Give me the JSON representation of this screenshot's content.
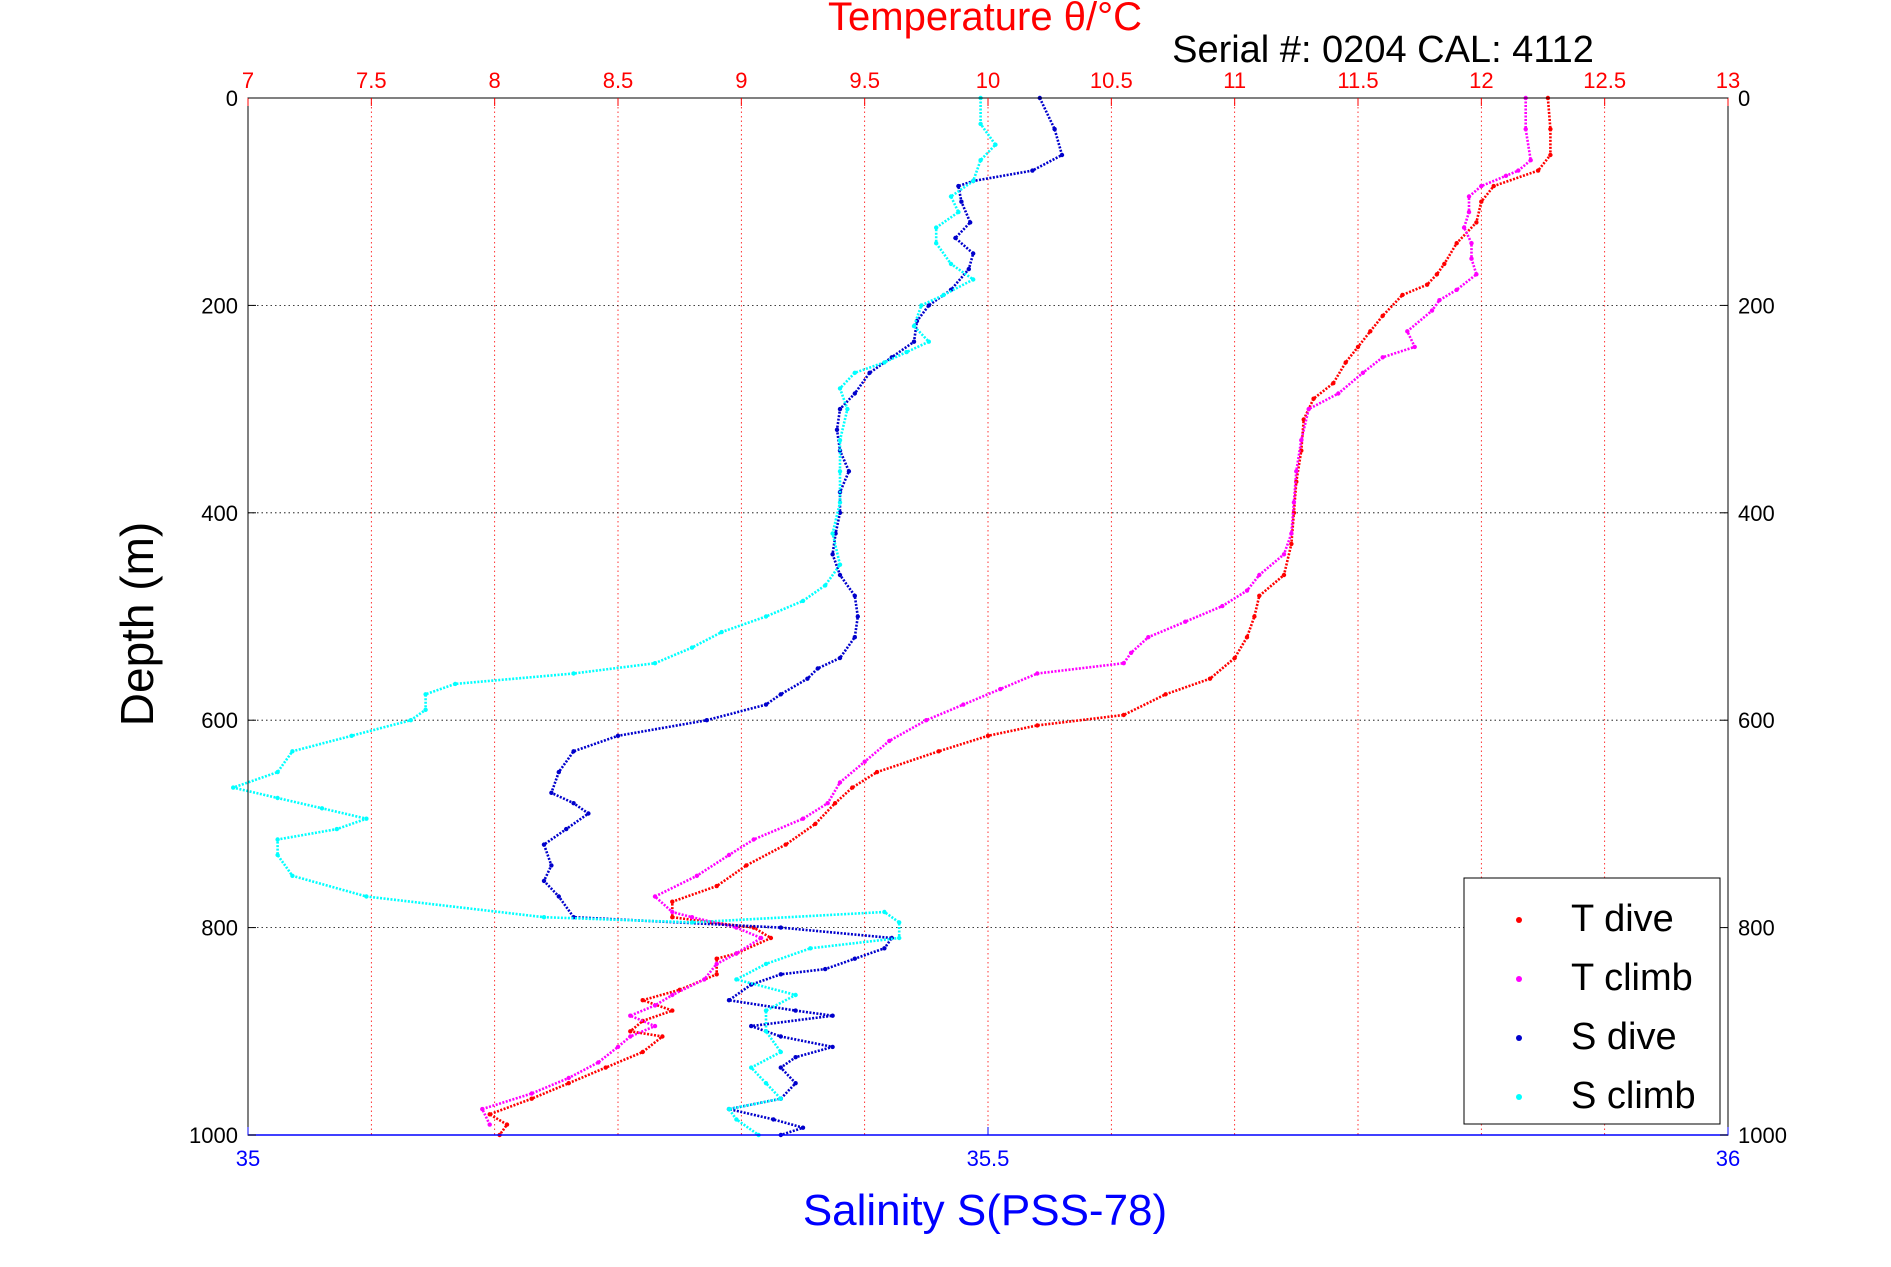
{
  "chart_data": {
    "type": "scatter",
    "title": "Temperature θ/°C",
    "subtitle": "Serial #: 0204  CAL: 4112",
    "ylabel": "Depth (m)",
    "xlabel_bottom": "Salinity S(PSS-78)",
    "x_top": {
      "label": "Temperature θ/°C",
      "range": [
        7,
        13
      ],
      "ticks": [
        "7",
        "7.5",
        "8",
        "8.5",
        "9",
        "9.5",
        "10",
        "10.5",
        "11",
        "11.5",
        "12",
        "12.5",
        "13"
      ],
      "color": "#ff0000"
    },
    "x_bottom": {
      "label": "Salinity S(PSS-78)",
      "range": [
        35,
        36
      ],
      "ticks": [
        "35",
        "35.5",
        "36"
      ],
      "color": "#0000ff"
    },
    "y": {
      "range": [
        0,
        1000
      ],
      "reversed": true,
      "ticks": [
        "0",
        "200",
        "400",
        "600",
        "800",
        "1000"
      ]
    },
    "grid": true,
    "legend": {
      "placement": "bottom-right",
      "entries": [
        "T dive",
        "T climb",
        "S dive",
        "S climb"
      ]
    },
    "series": [
      {
        "name": "T dive",
        "axis": "top",
        "color": "#ff0000",
        "points": [
          [
            12.27,
            0
          ],
          [
            12.28,
            30
          ],
          [
            12.28,
            55
          ],
          [
            12.23,
            70
          ],
          [
            12.05,
            85
          ],
          [
            12.0,
            100
          ],
          [
            11.98,
            120
          ],
          [
            11.9,
            140
          ],
          [
            11.85,
            160
          ],
          [
            11.82,
            170
          ],
          [
            11.78,
            180
          ],
          [
            11.68,
            190
          ],
          [
            11.6,
            210
          ],
          [
            11.55,
            225
          ],
          [
            11.5,
            240
          ],
          [
            11.45,
            255
          ],
          [
            11.4,
            275
          ],
          [
            11.32,
            290
          ],
          [
            11.28,
            310
          ],
          [
            11.27,
            340
          ],
          [
            11.25,
            370
          ],
          [
            11.24,
            400
          ],
          [
            11.23,
            430
          ],
          [
            11.2,
            460
          ],
          [
            11.1,
            480
          ],
          [
            11.08,
            500
          ],
          [
            11.05,
            520
          ],
          [
            11.0,
            540
          ],
          [
            10.9,
            560
          ],
          [
            10.72,
            575
          ],
          [
            10.55,
            595
          ],
          [
            10.2,
            605
          ],
          [
            10.0,
            615
          ],
          [
            9.8,
            630
          ],
          [
            9.55,
            650
          ],
          [
            9.45,
            665
          ],
          [
            9.38,
            680
          ],
          [
            9.3,
            700
          ],
          [
            9.18,
            720
          ],
          [
            9.02,
            740
          ],
          [
            8.9,
            760
          ],
          [
            8.72,
            775
          ],
          [
            8.72,
            790
          ],
          [
            8.88,
            795
          ],
          [
            9.05,
            800
          ],
          [
            9.12,
            810
          ],
          [
            8.98,
            825
          ],
          [
            8.9,
            830
          ],
          [
            8.9,
            845
          ],
          [
            8.75,
            860
          ],
          [
            8.6,
            870
          ],
          [
            8.72,
            880
          ],
          [
            8.6,
            890
          ],
          [
            8.55,
            900
          ],
          [
            8.68,
            905
          ],
          [
            8.6,
            920
          ],
          [
            8.45,
            935
          ],
          [
            8.3,
            950
          ],
          [
            8.15,
            965
          ],
          [
            7.98,
            980
          ],
          [
            8.05,
            990
          ],
          [
            8.02,
            1000
          ]
        ]
      },
      {
        "name": "T climb",
        "axis": "top",
        "color": "#ff00ff",
        "points": [
          [
            12.18,
            0
          ],
          [
            12.18,
            30
          ],
          [
            12.2,
            60
          ],
          [
            12.15,
            70
          ],
          [
            12.1,
            75
          ],
          [
            12.0,
            85
          ],
          [
            11.95,
            95
          ],
          [
            11.95,
            110
          ],
          [
            11.93,
            125
          ],
          [
            11.96,
            140
          ],
          [
            11.96,
            155
          ],
          [
            11.98,
            170
          ],
          [
            11.9,
            185
          ],
          [
            11.83,
            195
          ],
          [
            11.8,
            205
          ],
          [
            11.7,
            225
          ],
          [
            11.73,
            240
          ],
          [
            11.6,
            250
          ],
          [
            11.52,
            265
          ],
          [
            11.42,
            285
          ],
          [
            11.3,
            300
          ],
          [
            11.27,
            330
          ],
          [
            11.25,
            360
          ],
          [
            11.24,
            390
          ],
          [
            11.23,
            420
          ],
          [
            11.2,
            440
          ],
          [
            11.1,
            460
          ],
          [
            11.05,
            475
          ],
          [
            10.95,
            490
          ],
          [
            10.8,
            505
          ],
          [
            10.65,
            520
          ],
          [
            10.58,
            535
          ],
          [
            10.55,
            545
          ],
          [
            10.2,
            555
          ],
          [
            10.05,
            570
          ],
          [
            9.9,
            585
          ],
          [
            9.75,
            600
          ],
          [
            9.6,
            620
          ],
          [
            9.5,
            640
          ],
          [
            9.4,
            660
          ],
          [
            9.35,
            680
          ],
          [
            9.25,
            695
          ],
          [
            9.05,
            715
          ],
          [
            8.95,
            730
          ],
          [
            8.82,
            750
          ],
          [
            8.65,
            770
          ],
          [
            8.72,
            785
          ],
          [
            8.8,
            790
          ],
          [
            8.98,
            800
          ],
          [
            9.08,
            810
          ],
          [
            8.98,
            825
          ],
          [
            8.9,
            835
          ],
          [
            8.85,
            850
          ],
          [
            8.72,
            865
          ],
          [
            8.65,
            875
          ],
          [
            8.55,
            885
          ],
          [
            8.65,
            895
          ],
          [
            8.55,
            905
          ],
          [
            8.5,
            915
          ],
          [
            8.42,
            930
          ],
          [
            8.3,
            945
          ],
          [
            8.15,
            960
          ],
          [
            7.95,
            975
          ],
          [
            7.98,
            990
          ]
        ]
      },
      {
        "name": "S dive",
        "axis": "bottom",
        "color": "#0000cc",
        "points": [
          [
            35.535,
            0
          ],
          [
            35.545,
            30
          ],
          [
            35.55,
            55
          ],
          [
            35.53,
            70
          ],
          [
            35.49,
            80
          ],
          [
            35.48,
            85
          ],
          [
            35.482,
            100
          ],
          [
            35.488,
            120
          ],
          [
            35.478,
            135
          ],
          [
            35.49,
            150
          ],
          [
            35.487,
            165
          ],
          [
            35.475,
            185
          ],
          [
            35.46,
            200
          ],
          [
            35.452,
            215
          ],
          [
            35.45,
            235
          ],
          [
            35.435,
            250
          ],
          [
            35.42,
            265
          ],
          [
            35.41,
            285
          ],
          [
            35.4,
            300
          ],
          [
            35.398,
            320
          ],
          [
            35.4,
            340
          ],
          [
            35.406,
            360
          ],
          [
            35.4,
            380
          ],
          [
            35.4,
            400
          ],
          [
            35.397,
            420
          ],
          [
            35.395,
            440
          ],
          [
            35.4,
            460
          ],
          [
            35.41,
            480
          ],
          [
            35.412,
            500
          ],
          [
            35.41,
            520
          ],
          [
            35.4,
            540
          ],
          [
            35.385,
            550
          ],
          [
            35.378,
            560
          ],
          [
            35.36,
            575
          ],
          [
            35.35,
            585
          ],
          [
            35.31,
            600
          ],
          [
            35.25,
            615
          ],
          [
            35.22,
            630
          ],
          [
            35.21,
            650
          ],
          [
            35.205,
            670
          ],
          [
            35.22,
            680
          ],
          [
            35.23,
            690
          ],
          [
            35.215,
            705
          ],
          [
            35.2,
            720
          ],
          [
            35.205,
            740
          ],
          [
            35.2,
            755
          ],
          [
            35.21,
            770
          ],
          [
            35.22,
            790
          ],
          [
            35.36,
            800
          ],
          [
            35.435,
            810
          ],
          [
            35.43,
            820
          ],
          [
            35.41,
            830
          ],
          [
            35.39,
            840
          ],
          [
            35.36,
            845
          ],
          [
            35.34,
            855
          ],
          [
            35.325,
            870
          ],
          [
            35.37,
            880
          ],
          [
            35.395,
            885
          ],
          [
            35.34,
            895
          ],
          [
            35.36,
            905
          ],
          [
            35.395,
            915
          ],
          [
            35.37,
            925
          ],
          [
            35.36,
            935
          ],
          [
            35.37,
            950
          ],
          [
            35.36,
            965
          ],
          [
            35.325,
            975
          ],
          [
            35.355,
            985
          ],
          [
            35.375,
            993
          ],
          [
            35.36,
            1000
          ]
        ]
      },
      {
        "name": "S climb",
        "axis": "bottom",
        "color": "#00ffff",
        "points": [
          [
            35.495,
            0
          ],
          [
            35.495,
            25
          ],
          [
            35.505,
            45
          ],
          [
            35.495,
            60
          ],
          [
            35.49,
            80
          ],
          [
            35.475,
            95
          ],
          [
            35.48,
            110
          ],
          [
            35.465,
            125
          ],
          [
            35.465,
            140
          ],
          [
            35.475,
            160
          ],
          [
            35.49,
            175
          ],
          [
            35.47,
            190
          ],
          [
            35.455,
            200
          ],
          [
            35.45,
            220
          ],
          [
            35.46,
            235
          ],
          [
            35.445,
            245
          ],
          [
            35.43,
            255
          ],
          [
            35.41,
            265
          ],
          [
            35.4,
            280
          ],
          [
            35.405,
            300
          ],
          [
            35.4,
            330
          ],
          [
            35.4,
            360
          ],
          [
            35.4,
            390
          ],
          [
            35.395,
            420
          ],
          [
            35.4,
            450
          ],
          [
            35.39,
            470
          ],
          [
            35.375,
            485
          ],
          [
            35.35,
            500
          ],
          [
            35.32,
            515
          ],
          [
            35.3,
            530
          ],
          [
            35.275,
            545
          ],
          [
            35.22,
            555
          ],
          [
            35.14,
            565
          ],
          [
            35.12,
            575
          ],
          [
            35.12,
            590
          ],
          [
            35.11,
            600
          ],
          [
            35.07,
            615
          ],
          [
            35.03,
            630
          ],
          [
            35.02,
            650
          ],
          [
            34.99,
            665
          ],
          [
            35.02,
            675
          ],
          [
            35.05,
            685
          ],
          [
            35.08,
            695
          ],
          [
            35.06,
            705
          ],
          [
            35.02,
            715
          ],
          [
            35.02,
            730
          ],
          [
            35.03,
            750
          ],
          [
            35.08,
            770
          ],
          [
            35.2,
            790
          ],
          [
            35.3,
            795
          ],
          [
            35.43,
            785
          ],
          [
            35.44,
            795
          ],
          [
            35.44,
            810
          ],
          [
            35.38,
            820
          ],
          [
            35.35,
            835
          ],
          [
            35.33,
            850
          ],
          [
            35.37,
            865
          ],
          [
            35.35,
            880
          ],
          [
            35.35,
            900
          ],
          [
            35.36,
            920
          ],
          [
            35.34,
            935
          ],
          [
            35.35,
            950
          ],
          [
            35.36,
            965
          ],
          [
            35.325,
            975
          ],
          [
            35.33,
            985
          ],
          [
            35.345,
            1000
          ]
        ]
      }
    ]
  }
}
